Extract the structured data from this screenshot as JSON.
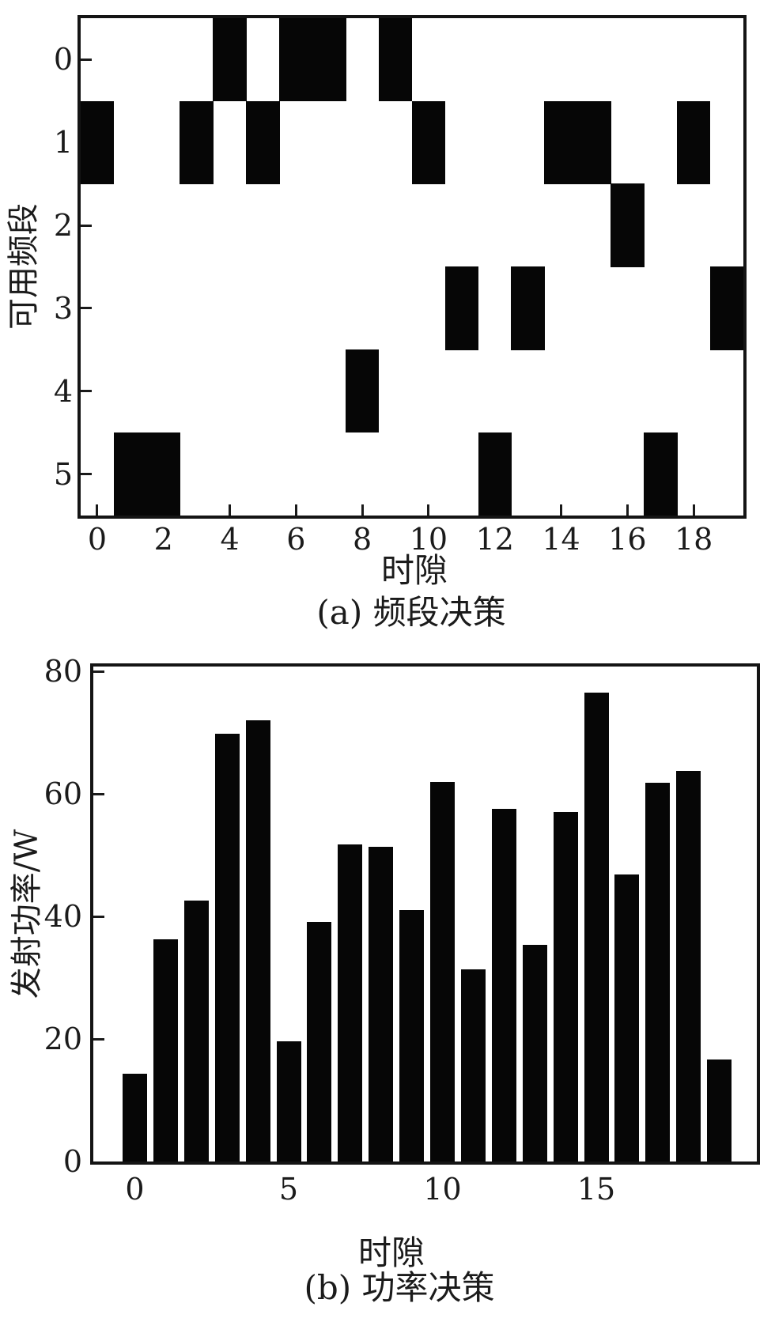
{
  "chart_data": [
    {
      "type": "heatmap",
      "panel": "a",
      "title": "(a) 频段决策",
      "xlabel": "时隙",
      "ylabel": "可用频段",
      "n_slots": 20,
      "bands": [
        0,
        1,
        2,
        3,
        4,
        5
      ],
      "selected_band_per_slot": [
        1,
        5,
        5,
        1,
        0,
        1,
        0,
        0,
        4,
        0,
        1,
        3,
        5,
        3,
        1,
        1,
        2,
        5,
        1,
        3
      ],
      "x_ticks": [
        0,
        2,
        4,
        6,
        8,
        10,
        12,
        14,
        16,
        18
      ],
      "y_ticks": [
        0,
        1,
        2,
        3,
        4,
        5
      ],
      "cell_on_color": "#000000",
      "cell_off_color": "#ffffff",
      "grid": false,
      "legend": "none"
    },
    {
      "type": "bar",
      "panel": "b",
      "title": "(b) 功率决策",
      "xlabel": "时隙",
      "ylabel": "发射功率/W",
      "x": [
        0,
        1,
        2,
        3,
        4,
        5,
        6,
        7,
        8,
        9,
        10,
        11,
        12,
        13,
        14,
        15,
        16,
        17,
        18,
        19
      ],
      "values": [
        14.3,
        36.2,
        42.6,
        69.8,
        72.0,
        19.6,
        39.1,
        51.8,
        51.3,
        41.0,
        62.0,
        31.3,
        57.6,
        35.4,
        57.0,
        76.5,
        46.9,
        61.8,
        63.8,
        16.6
      ],
      "x_ticks": [
        0,
        5,
        10,
        15
      ],
      "y_ticks": [
        0,
        20,
        40,
        60,
        80
      ],
      "ylim": [
        0,
        80
      ],
      "bar_color": "#000000",
      "grid": false,
      "legend": "none"
    }
  ]
}
